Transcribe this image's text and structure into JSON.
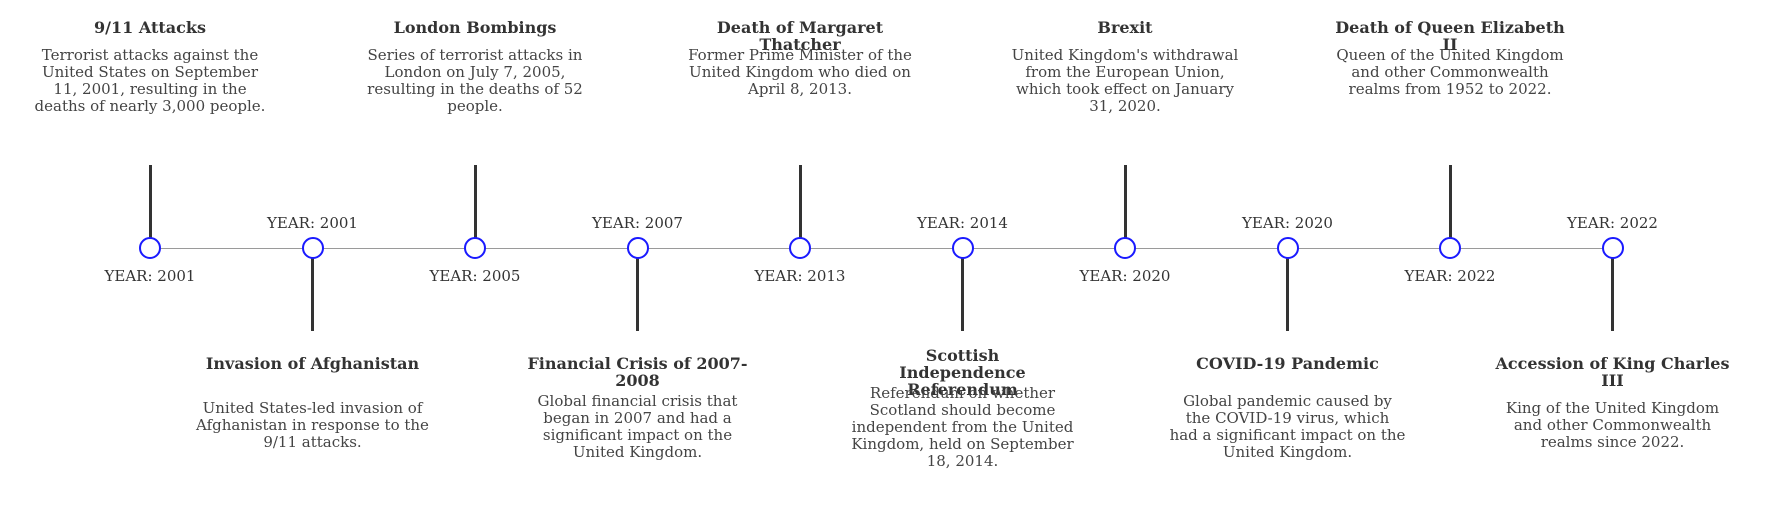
{
  "events": [
    {
      "title": "9/11 Attacks",
      "year_label": "YEAR: 2001",
      "description": "Terrorist attacks against the United States on September 11, 2001, resulting in the deaths of nearly 3,000 people.",
      "side": "top"
    },
    {
      "title": "Invasion of Afghanistan",
      "year_label": "YEAR: 2001",
      "description": "United States-led invasion of Afghanistan in response to the 9/11 attacks.",
      "side": "bottom"
    },
    {
      "title": "London Bombings",
      "year_label": "YEAR: 2005",
      "description": "Series of terrorist attacks in London on July 7, 2005, resulting in the deaths of 52 people.",
      "side": "top"
    },
    {
      "title": "Financial Crisis of 2007-2008",
      "year_label": "YEAR: 2007",
      "description": "Global financial crisis that began in 2007 and had a significant impact on the United Kingdom.",
      "side": "bottom"
    },
    {
      "title": "Death of Margaret Thatcher",
      "year_label": "YEAR: 2013",
      "description": "Former Prime Minister of the United Kingdom who died on April 8, 2013.",
      "side": "top"
    },
    {
      "title": "Scottish Independence Referendum",
      "year_label": "YEAR: 2014",
      "description": "Referendum on whether Scotland should become independent from the United Kingdom, held on September 18, 2014.",
      "side": "bottom"
    },
    {
      "title": "Brexit",
      "year_label": "YEAR: 2020",
      "description": "United Kingdom's withdrawal from the European Union, which took effect on January 31, 2020.",
      "side": "top"
    },
    {
      "title": "COVID-19 Pandemic",
      "year_label": "YEAR: 2020",
      "description": "Global pandemic caused by the COVID-19 virus, which had a significant impact on the United Kingdom.",
      "side": "bottom"
    },
    {
      "title": "Death of Queen Elizabeth II",
      "year_label": "YEAR: 2022",
      "description": "Queen of the United Kingdom and other Commonwealth realms from 1952 to 2022.",
      "side": "top"
    },
    {
      "title": "Accession of King Charles III",
      "year_label": "YEAR: 2022",
      "description": "King of the United Kingdom and other Commonwealth realms since 2022.",
      "side": "bottom"
    }
  ],
  "colors": {
    "node_border": "#1a1aff",
    "stem": "#333333",
    "axis": "#9a9a9a",
    "text": "#333333"
  }
}
